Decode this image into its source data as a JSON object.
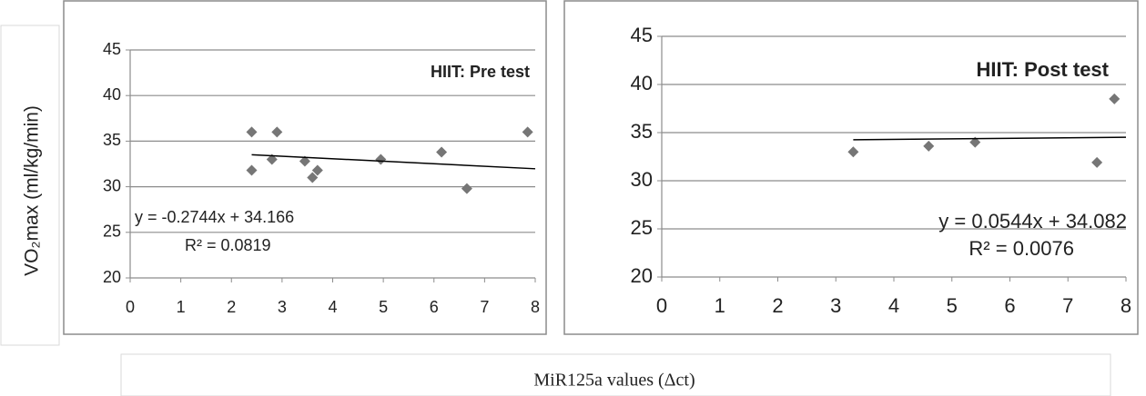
{
  "y_label": "VO₂max (ml/kg/min)",
  "x_label": "MiR125a values (Δct)",
  "chart_data": [
    {
      "type": "scatter",
      "annotation": "HIIT:  Pre test",
      "series": [
        {
          "color": "#767676",
          "x": [
            2.4,
            2.4,
            2.8,
            2.9,
            3.45,
            3.6,
            3.7,
            4.95,
            6.15,
            6.65,
            7.85
          ],
          "values": [
            36,
            31.8,
            33,
            36,
            32.8,
            31,
            31.8,
            33,
            33.8,
            29.8,
            36
          ]
        }
      ],
      "trendline": {
        "label": "y = -0.2744x + 34.166",
        "r2_label": "R² = 0.0819",
        "slope": -0.2744,
        "intercept": 34.166
      },
      "xlim": [
        0,
        8
      ],
      "xticks": [
        0,
        1,
        2,
        3,
        4,
        5,
        6,
        7,
        8
      ],
      "ylim": [
        20,
        45
      ],
      "yticks": [
        20,
        25,
        30,
        35,
        40,
        45
      ],
      "grid": true
    },
    {
      "type": "scatter",
      "annotation": "HIIT:  Post test",
      "series": [
        {
          "color": "#767676",
          "x": [
            3.3,
            4.6,
            5.4,
            7.5,
            7.8
          ],
          "values": [
            33,
            33.6,
            34,
            31.9,
            38.5
          ]
        }
      ],
      "trendline": {
        "label": "y = 0.0544x + 34.082",
        "r2_label": "R² = 0.0076",
        "slope": 0.0544,
        "intercept": 34.082
      },
      "xlim": [
        0,
        8
      ],
      "xticks": [
        0,
        1,
        2,
        3,
        4,
        5,
        6,
        7,
        8
      ],
      "ylim": [
        20,
        45
      ],
      "yticks": [
        20,
        25,
        30,
        35,
        40,
        45
      ],
      "grid": true
    }
  ]
}
